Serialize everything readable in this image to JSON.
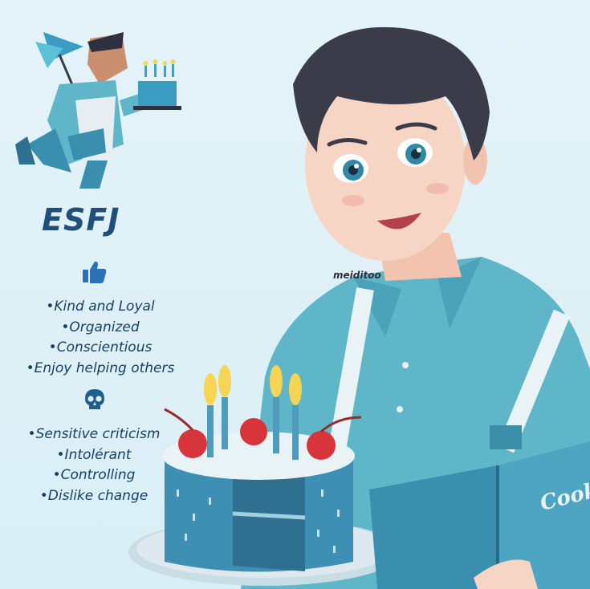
{
  "title": "ESFJ",
  "watermark": "meiditoo",
  "strengths": [
    "•Kind and Loyal",
    "•Organized",
    "•Conscientious",
    "•Enjoy helping others"
  ],
  "weaknesses": [
    "•Sensitive criticism",
    "•Intolérant",
    "•Controlling",
    "•Dislike change"
  ],
  "book_cover_text": "Cook",
  "icons": {
    "strengths": "thumbs-up-icon",
    "weaknesses": "skull-icon"
  },
  "colors": {
    "background": "#dff0f6",
    "title": "#1f4f7d",
    "text": "#163e66",
    "shirt": "#5fb6c9",
    "cake": "#3d8fb3"
  }
}
